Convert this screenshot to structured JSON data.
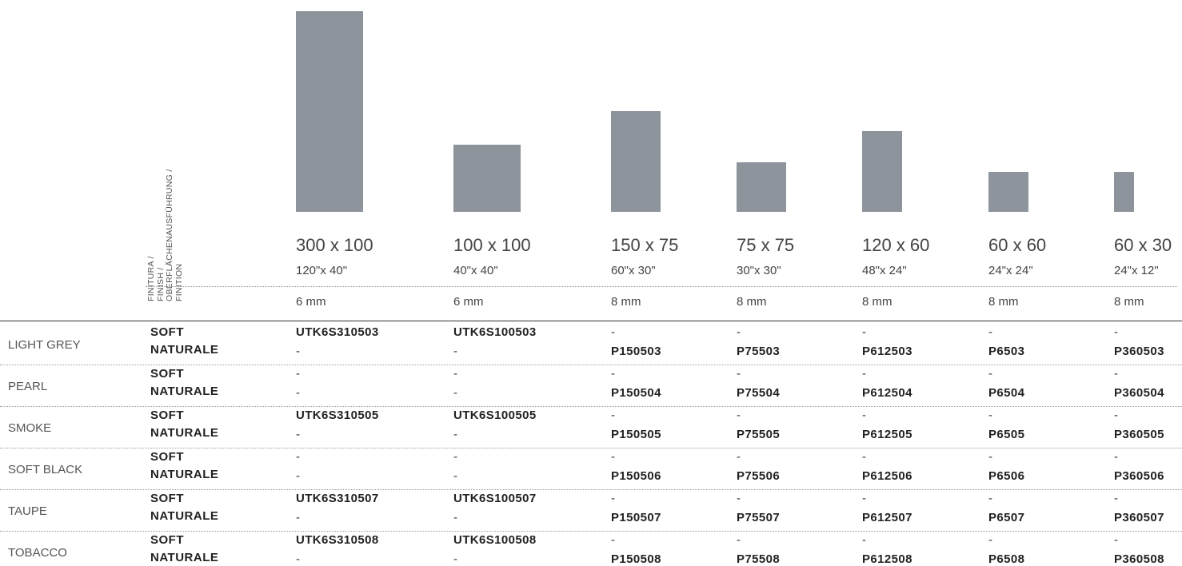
{
  "finish_header": [
    "FINITURA /",
    "FINISH /",
    "OBERFLÄCHENAUSFÜHRUNG /",
    "FINITION"
  ],
  "sizes": [
    {
      "metric": "300 x 100",
      "inch": "120\"x 40\"",
      "thickness": "6 mm"
    },
    {
      "metric": "100 x 100",
      "inch": "40\"x 40\"",
      "thickness": "6 mm"
    },
    {
      "metric": "150 x 75",
      "inch": "60\"x 30\"",
      "thickness": "8 mm"
    },
    {
      "metric": "75 x 75",
      "inch": "30\"x 30\"",
      "thickness": "8 mm"
    },
    {
      "metric": "120 x 60",
      "inch": "48\"x 24\"",
      "thickness": "8 mm"
    },
    {
      "metric": "60 x 60",
      "inch": "24\"x 24\"",
      "thickness": "8 mm"
    },
    {
      "metric": "60 x 30",
      "inch": "24\"x 12\"",
      "thickness": "8 mm"
    }
  ],
  "swatch_color": "#8d949b",
  "finishes": [
    "SOFT",
    "NATURALE"
  ],
  "dash": "-",
  "rows": [
    {
      "color": "LIGHT GREY",
      "soft": [
        "UTK6S310503",
        "UTK6S100503",
        "-",
        "-",
        "-",
        "-",
        "-"
      ],
      "naturale": [
        "-",
        "-",
        "P150503",
        "P75503",
        "P612503",
        "P6503",
        "P360503"
      ]
    },
    {
      "color": "PEARL",
      "soft": [
        "-",
        "-",
        "-",
        "-",
        "-",
        "-",
        "-"
      ],
      "naturale": [
        "-",
        "-",
        "P150504",
        "P75504",
        "P612504",
        "P6504",
        "P360504"
      ]
    },
    {
      "color": "SMOKE",
      "soft": [
        "UTK6S310505",
        "UTK6S100505",
        "-",
        "-",
        "-",
        "-",
        "-"
      ],
      "naturale": [
        "-",
        "-",
        "P150505",
        "P75505",
        "P612505",
        "P6505",
        "P360505"
      ]
    },
    {
      "color": "SOFT BLACK",
      "soft": [
        "-",
        "-",
        "-",
        "-",
        "-",
        "-",
        "-"
      ],
      "naturale": [
        "-",
        "-",
        "P150506",
        "P75506",
        "P612506",
        "P6506",
        "P360506"
      ]
    },
    {
      "color": "TAUPE",
      "soft": [
        "UTK6S310507",
        "UTK6S100507",
        "-",
        "-",
        "-",
        "-",
        "-"
      ],
      "naturale": [
        "-",
        "-",
        "P150507",
        "P75507",
        "P612507",
        "P6507",
        "P360507"
      ]
    },
    {
      "color": "TOBACCO",
      "soft": [
        "UTK6S310508",
        "UTK6S100508",
        "-",
        "-",
        "-",
        "-",
        "-"
      ],
      "naturale": [
        "-",
        "-",
        "P150508",
        "P75508",
        "P612508",
        "P6508",
        "P360508"
      ]
    }
  ]
}
